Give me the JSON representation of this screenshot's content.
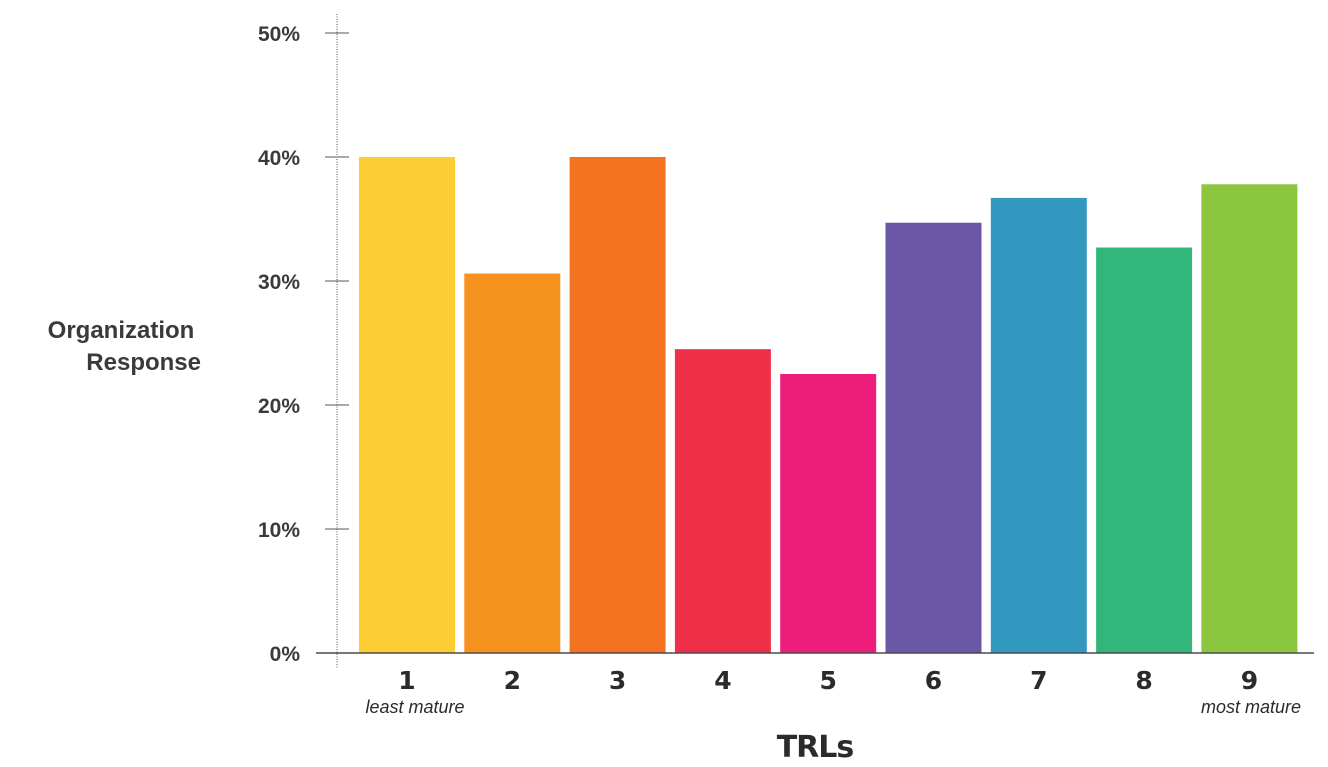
{
  "chart_data": {
    "type": "bar",
    "categories": [
      "1",
      "2",
      "3",
      "4",
      "5",
      "6",
      "7",
      "8",
      "9"
    ],
    "values": [
      40,
      30.6,
      40,
      24.5,
      22.5,
      34.7,
      36.7,
      32.7,
      37.8
    ],
    "colors": [
      "#fcce33",
      "#f6921e",
      "#f37321",
      "#ef2e48",
      "#ed1e79",
      "#6a57a5",
      "#3399c1",
      "#33b67a",
      "#8cc63f"
    ],
    "ylim": [
      0,
      50
    ],
    "yticks": [
      0,
      10,
      20,
      30,
      40,
      50
    ],
    "ytick_labels": [
      "0%",
      "10%",
      "20%",
      "30%",
      "40%",
      "50%"
    ],
    "ylabel_lines": [
      "Organization",
      "Response"
    ],
    "xlabel": "TRLs",
    "annotations": {
      "first": "least mature",
      "last": "most mature"
    },
    "grid": false
  }
}
